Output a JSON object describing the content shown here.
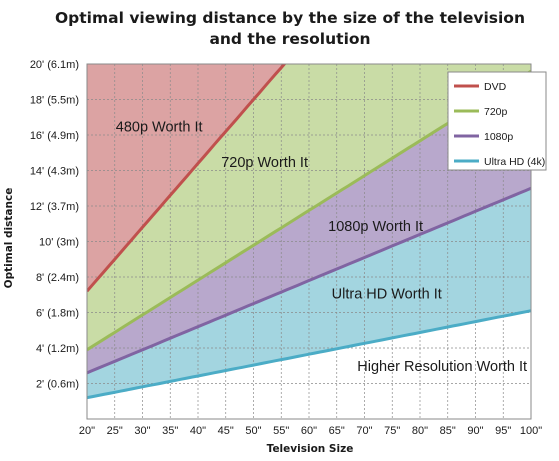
{
  "chart_data": {
    "type": "area",
    "title": "Optimal viewing distance by the size of the television",
    "subtitle": "and the resolution",
    "xlabel": "Television Size",
    "ylabel": "Optimal distance",
    "x": [
      20,
      25,
      30,
      35,
      40,
      45,
      50,
      55,
      60,
      65,
      70,
      75,
      80,
      85,
      90,
      95,
      100
    ],
    "xticks": [
      "20\"",
      "25\"",
      "30\"",
      "35\"",
      "40\"",
      "45\"",
      "50\"",
      "55\"",
      "60\"",
      "65\"",
      "70\"",
      "75\"",
      "80\"",
      "85\"",
      "90\"",
      "95\"",
      "100\""
    ],
    "xlim": [
      20,
      100
    ],
    "ylim": [
      0,
      20
    ],
    "yticks": [
      {
        "value": 2,
        "label": "2' (0.6m)"
      },
      {
        "value": 4,
        "label": "4' (1.2m)"
      },
      {
        "value": 6,
        "label": "6' (1.8m)"
      },
      {
        "value": 8,
        "label": "8' (2.4m)"
      },
      {
        "value": 10,
        "label": "10' (3m)"
      },
      {
        "value": 12,
        "label": "12' (3.7m)"
      },
      {
        "value": 14,
        "label": "14' (4.3m)"
      },
      {
        "value": 16,
        "label": "16' (4.9m)"
      },
      {
        "value": 18,
        "label": "18' (5.5m)"
      },
      {
        "value": 20,
        "label": "20' (6.1m)"
      }
    ],
    "grid": true,
    "legend_position": "top-right",
    "series": [
      {
        "name": "DVD",
        "color": "#c0504d",
        "fill": "#dca3a3",
        "values": [
          7.2,
          9.0,
          10.8,
          12.6,
          14.4,
          16.2,
          18.0,
          19.8,
          null,
          null,
          null,
          null,
          null,
          null,
          null,
          null,
          null
        ]
      },
      {
        "name": "720p",
        "color": "#9bbb59",
        "fill": "#c9dca6",
        "values": [
          3.9,
          4.9,
          5.9,
          6.9,
          7.8,
          8.8,
          9.8,
          10.8,
          11.8,
          12.7,
          13.7,
          14.7,
          15.7,
          16.6,
          17.6,
          18.6,
          19.6
        ]
      },
      {
        "name": "1080p",
        "color": "#8064a2",
        "fill": "#b8a8cc",
        "values": [
          2.6,
          3.3,
          3.9,
          4.6,
          5.2,
          5.9,
          6.5,
          7.2,
          7.8,
          8.5,
          9.1,
          9.8,
          10.4,
          11.1,
          11.7,
          12.4,
          13.0
        ]
      },
      {
        "name": "Ultra HD (4k)",
        "color": "#4bacc6",
        "fill": "#a3d5e0",
        "values": [
          1.2,
          1.5,
          1.9,
          2.2,
          2.5,
          2.8,
          3.1,
          3.4,
          3.7,
          4.0,
          4.3,
          4.6,
          4.9,
          5.2,
          5.5,
          5.8,
          6.1
        ]
      }
    ],
    "regions": [
      {
        "label": "480p Worth It",
        "x": 33,
        "y": 16.2
      },
      {
        "label": "720p Worth It",
        "x": 52,
        "y": 14.2
      },
      {
        "label": "1080p Worth It",
        "x": 72,
        "y": 10.6
      },
      {
        "label": "Ultra HD Worth It",
        "x": 74,
        "y": 6.8
      },
      {
        "label": "Higher Resolution Worth It",
        "x": 84,
        "y": 2.7
      }
    ]
  }
}
